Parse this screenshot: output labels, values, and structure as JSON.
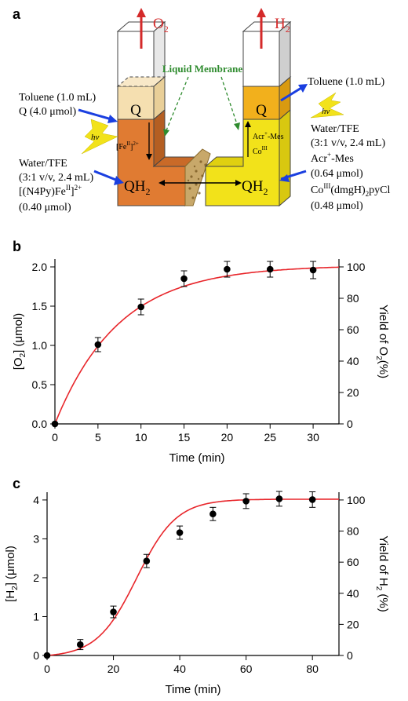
{
  "panels": {
    "a": "a",
    "b": "b",
    "c": "c"
  },
  "diagram": {
    "o2": "O",
    "o2_sub": "2",
    "h2": "H",
    "h2_sub": "2",
    "liquid_membrane": "Liquid Membrane",
    "left": {
      "toluene": "Toluene (1.0 mL)",
      "q_amount": "Q (4.0 μmol)",
      "q": "Q",
      "qh": "QH",
      "qh_sub": "2",
      "fe": "[Fe",
      "fe_sup": "II",
      "fe_end": "]",
      "fe_charge": "2+",
      "hv": "hν",
      "water1": "Water/TFE",
      "water2": "(3:1 v/v, 2.4 mL)",
      "cat1": "[(N4Py)Fe",
      "cat1_sup": "II",
      "cat1_end": "]",
      "cat1_charge": "2+",
      "cat_amount": "(0.40 μmol)"
    },
    "right": {
      "toluene": "Toluene (1.0 mL)",
      "q": "Q",
      "qh": "QH",
      "qh_sub": "2",
      "hv": "hν",
      "acr_box1": "Acr",
      "acr_box1_sup": "+",
      "acr_box1_end": "-Mes",
      "co_box": "Co",
      "co_box_sup": "III",
      "water1": "Water/TFE",
      "water2": "(3:1 v/v, 2.4 mL)",
      "acr": "Acr",
      "acr_sup": "+",
      "acr_end": "-Mes",
      "acr_amount": "(0.64 μmol)",
      "co": "Co",
      "co_sup": "III",
      "co_end": "(dmgH)",
      "co_sub": "2",
      "co_tail": "pyCl",
      "co_amount": "(0.48 μmol)"
    }
  },
  "colors": {
    "curve": "#e8262b",
    "arrow_red": "#d42a2a",
    "arrow_blue": "#1a3fe0",
    "membrane_label": "#2e8b2e",
    "left_phase": "#e07b32",
    "right_phase": "#f2e21a",
    "toluene_left": "#f5dfb0",
    "toluene_right": "#f2b01c"
  },
  "chart_data": [
    {
      "panel": "b",
      "type": "scatter",
      "xlabel": "Time (min)",
      "ylabel_left": "[O",
      "ylabel_left_sub": "2",
      "ylabel_left_end": "] (μmol)",
      "ylabel_right": "Yield of O",
      "ylabel_right_sub": "2",
      "ylabel_right_end": "(%)",
      "xlim": [
        0,
        33
      ],
      "ylim": [
        0,
        2.1
      ],
      "ylim_right": [
        0,
        105
      ],
      "x_ticks": [
        0,
        5,
        10,
        15,
        20,
        25,
        30
      ],
      "x_tick_labels": [
        "0",
        "5",
        "10",
        "15",
        "20",
        "25",
        "30"
      ],
      "y_ticks": [
        0,
        0.5,
        1.0,
        1.5,
        2.0
      ],
      "y_tick_labels": [
        "0.0",
        "0.5",
        "1.0",
        "1.5",
        "2.0"
      ],
      "y2_ticks": [
        0,
        20,
        40,
        60,
        80,
        100
      ],
      "y2_tick_labels": [
        "0",
        "20",
        "40",
        "60",
        "80",
        "100"
      ],
      "x": [
        0,
        5,
        10,
        15,
        20,
        25,
        30
      ],
      "y": [
        0,
        1.01,
        1.49,
        1.85,
        1.97,
        1.97,
        1.96
      ],
      "error": [
        0,
        0.09,
        0.1,
        0.1,
        0.1,
        0.1,
        0.11
      ],
      "fit": {
        "model": "exponential",
        "a": 2.02,
        "k": 0.135
      }
    },
    {
      "panel": "c",
      "type": "scatter",
      "xlabel": "Time (min)",
      "ylabel_left": "[H",
      "ylabel_left_sub": "2",
      "ylabel_left_end": "] (μmol)",
      "ylabel_right": "Yield of H",
      "ylabel_right_sub": "2",
      "ylabel_right_end": " (%)",
      "xlim": [
        0,
        88
      ],
      "ylim": [
        0,
        4.2
      ],
      "ylim_right": [
        0,
        105
      ],
      "x_ticks": [
        0,
        20,
        40,
        60,
        80
      ],
      "x_tick_labels": [
        "0",
        "20",
        "40",
        "60",
        "80"
      ],
      "y_ticks": [
        0,
        1,
        2,
        3,
        4
      ],
      "y_tick_labels": [
        "0",
        "1",
        "2",
        "3",
        "4"
      ],
      "y2_ticks": [
        0,
        20,
        40,
        60,
        80,
        100
      ],
      "y2_tick_labels": [
        "0",
        "20",
        "40",
        "60",
        "80",
        "100"
      ],
      "x": [
        0,
        10,
        20,
        30,
        40,
        50,
        60,
        70,
        80
      ],
      "y": [
        0,
        0.28,
        1.12,
        2.43,
        3.16,
        3.64,
        3.97,
        4.03,
        4.01
      ],
      "error": [
        0,
        0.13,
        0.15,
        0.17,
        0.17,
        0.17,
        0.19,
        0.19,
        0.2
      ],
      "fit": {
        "model": "sigmoid",
        "a": 4.02,
        "x0": 27,
        "w": 6
      }
    }
  ]
}
